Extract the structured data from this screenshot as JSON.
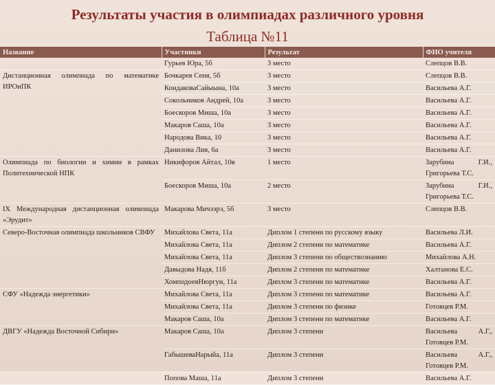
{
  "title": "Результаты участия в олимпиадах различного уровня",
  "subtitle": "Таблица №11",
  "table": {
    "header": [
      "Название",
      "Участники",
      "Результат",
      "ФИО учителя"
    ],
    "groups": [
      {
        "rows": [
          [
            "Гурьев Юра, 5б",
            "3 место",
            "Слепцов В.В."
          ]
        ]
      },
      {
        "name": "Дистанционная олимпиада по математике ИРОиПК",
        "rows": [
          [
            "Бочкарев Сеня, 5б",
            "3 место",
            "Слепцов В.В."
          ],
          [
            "КондаковаСайыына, 10а",
            "3 место",
            "Васильева А.Г."
          ],
          [
            "Сокольников Андрей, 10а",
            "3 место",
            "Васильева А.Г."
          ],
          [
            "Боескоров Миша, 10а",
            "3 место",
            "Васильева А.Г."
          ],
          [
            "Макаров Саша, 10а",
            "3 место",
            "Васильева А.Г."
          ],
          [
            "Народова Вика, 10",
            "3 место",
            "Васильева А.Г."
          ],
          [
            "Данилова Лия, 6а",
            "3 место",
            "Васильева А.Г."
          ]
        ]
      },
      {
        "name": "Олимпиада по биологии и химии в рамках Политехнической НПК",
        "rows": [
          [
            "Никифоров Айтал, 10в",
            "1 место",
            "Зарубина Г.И., Григорьева Т.С."
          ],
          [
            "Боескоров Миша, 10а",
            "2 место",
            "Зарубина Г.И., Григорьева Т.С."
          ]
        ]
      },
      {
        "name": "IX Международная дистанционная олимпиада «Эрудит»",
        "rows": [
          [
            "Макарова Мичээрэ, 5б",
            "3 место",
            "Слепцов В.В."
          ]
        ]
      },
      {
        "name": "Северо-Восточная олимпиада школьников СВФУ",
        "rows": [
          [
            "Михайлова Света, 11а",
            "Диплом 1 степени по русскому языку",
            "Васильева Л.И."
          ],
          [
            "Михайлова Света, 11а",
            "Диплом 2 степени по математике",
            "Васильева А.Г."
          ],
          [
            "Михайлова Света, 11а",
            "Диплом 3 степени по обществознанию",
            "Михайлова А.Н."
          ],
          [
            "Давыдова Надя, 11б",
            "Диплом 2 степени по математике",
            "Халтанова Е.С."
          ],
          [
            "ХомподоевНюргун, 11а",
            "Диплом 3 степени по математике",
            "Васильева А.Г."
          ]
        ]
      },
      {
        "name": "СФУ «Надежда энергетики»",
        "rows": [
          [
            "Михайлова Света, 11а",
            "Диплом 3 степени по математике",
            "Васильева А.Г."
          ],
          [
            "Михайлова Света, 11а",
            "Диплом 3 степени по физике",
            "Готовцев Р.М."
          ],
          [
            "Макаров Саша, 10а",
            "Диплом 3 степени по математике",
            "Васильева А.Г."
          ]
        ]
      },
      {
        "name": "ДВГУ «Надежда Восточной Сибири»",
        "rows": [
          [
            "Макаров Саша, 10а",
            "Диплом 3 степени",
            "Васильева А.Г., Готовцев Р.М."
          ],
          [
            "ГабышеваНарыйа, 11а",
            "Диплом 3 степени",
            "Васильева А.Г., Готовцев Р.М."
          ],
          [
            "Попова Маша, 11а",
            "Диплом 3 степени",
            "Васильева А.Г."
          ]
        ]
      }
    ]
  }
}
